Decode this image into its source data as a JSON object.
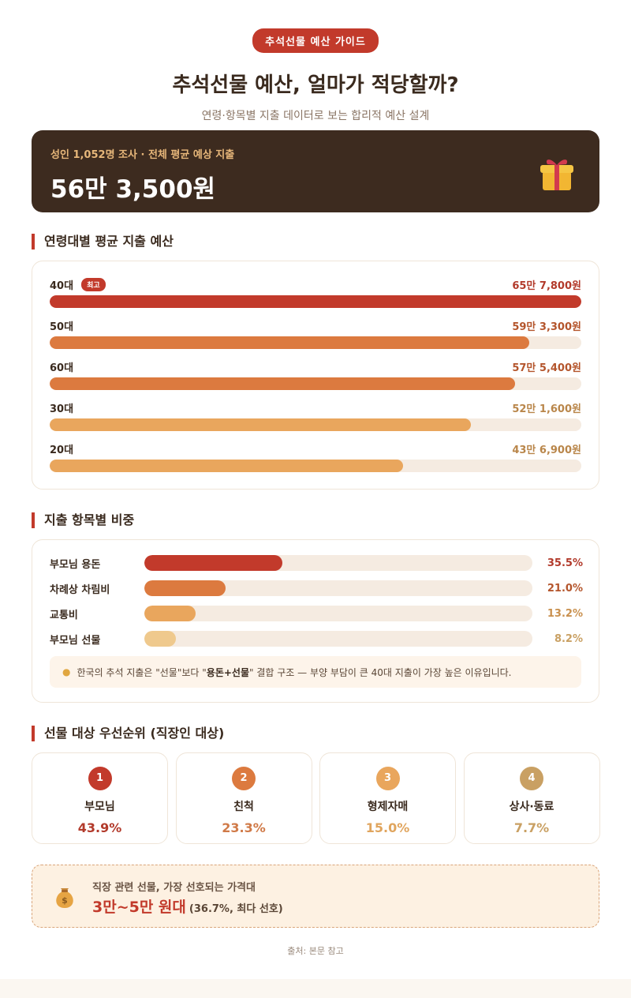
{
  "header": {
    "pill": "추석선물 예산 가이드",
    "title": "추석선물 예산, 얼마가 적당할까?",
    "subtitle": "연령·항목별 지출 데이터로 보는 합리적 예산 설계"
  },
  "hero": {
    "label": "성인 1,052명 조사 · 전체 평균 예상 지출",
    "value": "56만 3,500원",
    "icon": "gift-icon"
  },
  "sections": {
    "age": "연령대별 평균 지출 예산",
    "category": "지출 항목별 비중",
    "priority": "선물 대상 우선순위 (직장인 대상)"
  },
  "age_badge": "최고",
  "colors": {
    "red": "#c23a2b",
    "orange": "#dc7a3f",
    "amber": "#e9a65d",
    "light": "#efc98d",
    "gold": "#c9a063",
    "track": "#f5ebe1"
  },
  "chart_data": [
    {
      "type": "bar",
      "orientation": "horizontal",
      "categories": [
        "40대",
        "50대",
        "60대",
        "30대",
        "20대"
      ],
      "values": [
        657800,
        593300,
        575400,
        521600,
        436900
      ],
      "value_labels": [
        "65만 7,800원",
        "59만 3,300원",
        "57만 5,400원",
        "52만 1,600원",
        "43만 6,900원"
      ],
      "xlim": [
        0,
        657800
      ]
    },
    {
      "type": "bar",
      "orientation": "horizontal",
      "categories": [
        "부모님 용돈",
        "차례상 차림비",
        "교통비",
        "부모님 선물"
      ],
      "values": [
        35.5,
        21.0,
        13.2,
        8.2
      ],
      "value_labels": [
        "35.5%",
        "21.0%",
        "13.2%",
        "8.2%"
      ],
      "xlim": [
        0,
        100
      ]
    }
  ],
  "note": {
    "pre": "한국의 추석 지출은 \"선물\"보다 \"",
    "bold": "용돈+선물",
    "post": "\" 결합 구조 — 부양 부담이 큰 40대 지출이 가장 높은 이유입니다."
  },
  "priority": [
    {
      "rank": "1",
      "name": "부모님",
      "pct": "43.9%"
    },
    {
      "rank": "2",
      "name": "친척",
      "pct": "23.3%"
    },
    {
      "rank": "3",
      "name": "형제자매",
      "pct": "15.0%"
    },
    {
      "rank": "4",
      "name": "상사·동료",
      "pct": "7.7%"
    }
  ],
  "price": {
    "label": "직장 관련 선물, 가장 선호되는 가격대",
    "value": "3만~5만 원대",
    "note": "(36.7%, 최다 선호)",
    "icon": "money-bag-icon"
  },
  "source": "출처: 본문 참고"
}
